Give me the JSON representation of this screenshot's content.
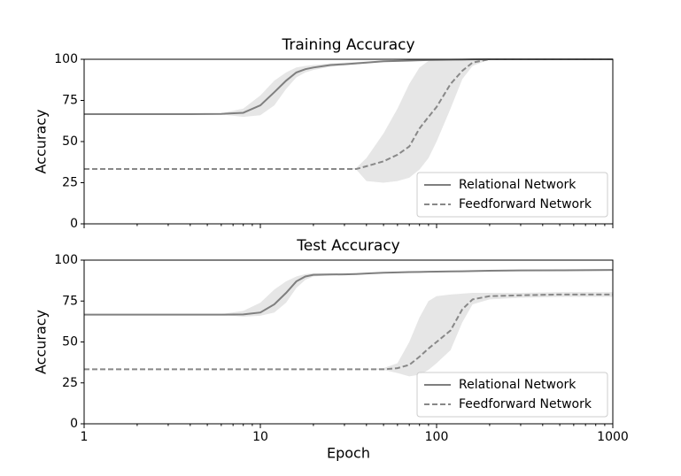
{
  "chart_data": [
    {
      "type": "line",
      "title": "Training Accuracy",
      "ylabel": "Accuracy",
      "xscale": "log",
      "xlim": [
        1,
        1000
      ],
      "xticks": [
        1,
        10,
        100,
        1000
      ],
      "ylim": [
        0,
        100
      ],
      "yticks": [
        0,
        25,
        50,
        75,
        100
      ],
      "legend": "lower right",
      "band_color": "#e6e6e6",
      "x": [
        1,
        2,
        4,
        6,
        8,
        10,
        12,
        14,
        16,
        18,
        20,
        25,
        30,
        35,
        40,
        50,
        60,
        70,
        80,
        90,
        100,
        120,
        140,
        160,
        200,
        300,
        500,
        1000
      ],
      "series": [
        {
          "name": "Relational Network",
          "color": "#7f7f7f",
          "dash": "solid",
          "values": [
            66.7,
            66.7,
            66.7,
            66.8,
            67.5,
            72,
            80,
            87,
            92,
            94,
            95,
            96.5,
            97,
            97.5,
            98,
            98.8,
            99,
            99.2,
            99.4,
            99.5,
            99.6,
            99.7,
            99.8,
            99.9,
            100,
            100,
            100,
            100
          ],
          "lower": [
            66.7,
            66.7,
            66.7,
            66.5,
            65,
            66,
            72,
            82,
            89,
            92,
            93.5,
            95.5,
            96.5,
            97,
            97.5,
            98.3,
            98.7,
            99,
            99.2,
            99.3,
            99.4,
            99.5,
            99.7,
            99.8,
            100,
            100,
            100,
            100
          ],
          "upper": [
            66.7,
            66.7,
            66.7,
            67.2,
            70,
            78,
            87,
            92,
            95,
            96,
            96.5,
            97.5,
            98,
            98.3,
            98.6,
            99.2,
            99.4,
            99.5,
            99.6,
            99.7,
            99.8,
            99.9,
            99.9,
            100,
            100,
            100,
            100,
            100
          ]
        },
        {
          "name": "Feedforward Network",
          "color": "#888888",
          "dash": "dashed",
          "values": [
            33.3,
            33.3,
            33.3,
            33.3,
            33.3,
            33.3,
            33.3,
            33.3,
            33.3,
            33.3,
            33.3,
            33.3,
            33.3,
            33.3,
            35,
            38,
            42,
            47,
            58,
            65,
            71,
            85,
            93,
            98,
            100,
            100,
            100,
            100
          ],
          "lower": [
            33.3,
            33.3,
            33.3,
            33.3,
            33.3,
            33.3,
            33.3,
            33.3,
            33.3,
            33.3,
            33.3,
            33.3,
            33.3,
            33,
            26,
            25,
            26,
            28,
            33,
            40,
            50,
            70,
            88,
            96,
            100,
            100,
            100,
            100
          ],
          "upper": [
            33.3,
            33.3,
            33.3,
            33.3,
            33.3,
            33.3,
            33.3,
            33.3,
            33.3,
            33.3,
            33.3,
            33.3,
            33.3,
            34,
            40,
            55,
            70,
            85,
            95,
            99,
            100,
            100,
            100,
            100,
            100,
            100,
            100,
            100
          ]
        }
      ]
    },
    {
      "type": "line",
      "title": "Test Accuracy",
      "ylabel": "Accuracy",
      "xlabel": "Epoch",
      "xscale": "log",
      "xlim": [
        1,
        1000
      ],
      "xticks": [
        1,
        10,
        100,
        1000
      ],
      "ylim": [
        0,
        100
      ],
      "yticks": [
        0,
        25,
        50,
        75,
        100
      ],
      "legend": "lower right",
      "band_color": "#e6e6e6",
      "x": [
        1,
        2,
        4,
        6,
        8,
        10,
        12,
        14,
        16,
        18,
        20,
        25,
        30,
        35,
        40,
        50,
        60,
        70,
        80,
        90,
        100,
        120,
        140,
        160,
        200,
        300,
        500,
        1000
      ],
      "series": [
        {
          "name": "Relational Network",
          "color": "#7f7f7f",
          "dash": "solid",
          "values": [
            66.7,
            66.7,
            66.7,
            66.7,
            66.8,
            68,
            73,
            80,
            87,
            90,
            91,
            91.2,
            91.3,
            91.5,
            91.8,
            92.3,
            92.5,
            92.7,
            92.8,
            92.9,
            93,
            93.1,
            93.2,
            93.3,
            93.5,
            93.7,
            93.8,
            94
          ],
          "lower": [
            66.7,
            66.7,
            66.7,
            66.5,
            65.5,
            66,
            68,
            74,
            83,
            88,
            90,
            90.8,
            91,
            91.2,
            91.5,
            92,
            92.2,
            92.4,
            92.5,
            92.6,
            92.7,
            92.8,
            92.9,
            93,
            93.2,
            93.4,
            93.5,
            93.7
          ],
          "upper": [
            66.7,
            66.7,
            66.7,
            67,
            69,
            74,
            82,
            87,
            90,
            91.5,
            92,
            92,
            92,
            92,
            92.2,
            92.6,
            92.8,
            93,
            93.1,
            93.2,
            93.3,
            93.4,
            93.5,
            93.6,
            93.8,
            94,
            94.1,
            94.3
          ]
        },
        {
          "name": "Feedforward Network",
          "color": "#888888",
          "dash": "dashed",
          "values": [
            33.3,
            33.3,
            33.3,
            33.3,
            33.3,
            33.3,
            33.3,
            33.3,
            33.3,
            33.3,
            33.3,
            33.3,
            33.3,
            33.3,
            33.3,
            33.3,
            34,
            36,
            41,
            46,
            50,
            57,
            70,
            76,
            78,
            78.5,
            79,
            79
          ],
          "lower": [
            33.3,
            33.3,
            33.3,
            33.3,
            33.3,
            33.3,
            33.3,
            33.3,
            33.3,
            33.3,
            33.3,
            33.3,
            33.3,
            33.3,
            33.3,
            33,
            31,
            29,
            30,
            33,
            37,
            45,
            62,
            73,
            76,
            77,
            77.5,
            77.5
          ],
          "upper": [
            33.3,
            33.3,
            33.3,
            33.3,
            33.3,
            33.3,
            33.3,
            33.3,
            33.3,
            33.3,
            33.3,
            33.3,
            33.3,
            33.3,
            33.5,
            34,
            37,
            50,
            65,
            75,
            78,
            79,
            79.5,
            80,
            80,
            80,
            80.5,
            80.5
          ]
        }
      ]
    }
  ]
}
